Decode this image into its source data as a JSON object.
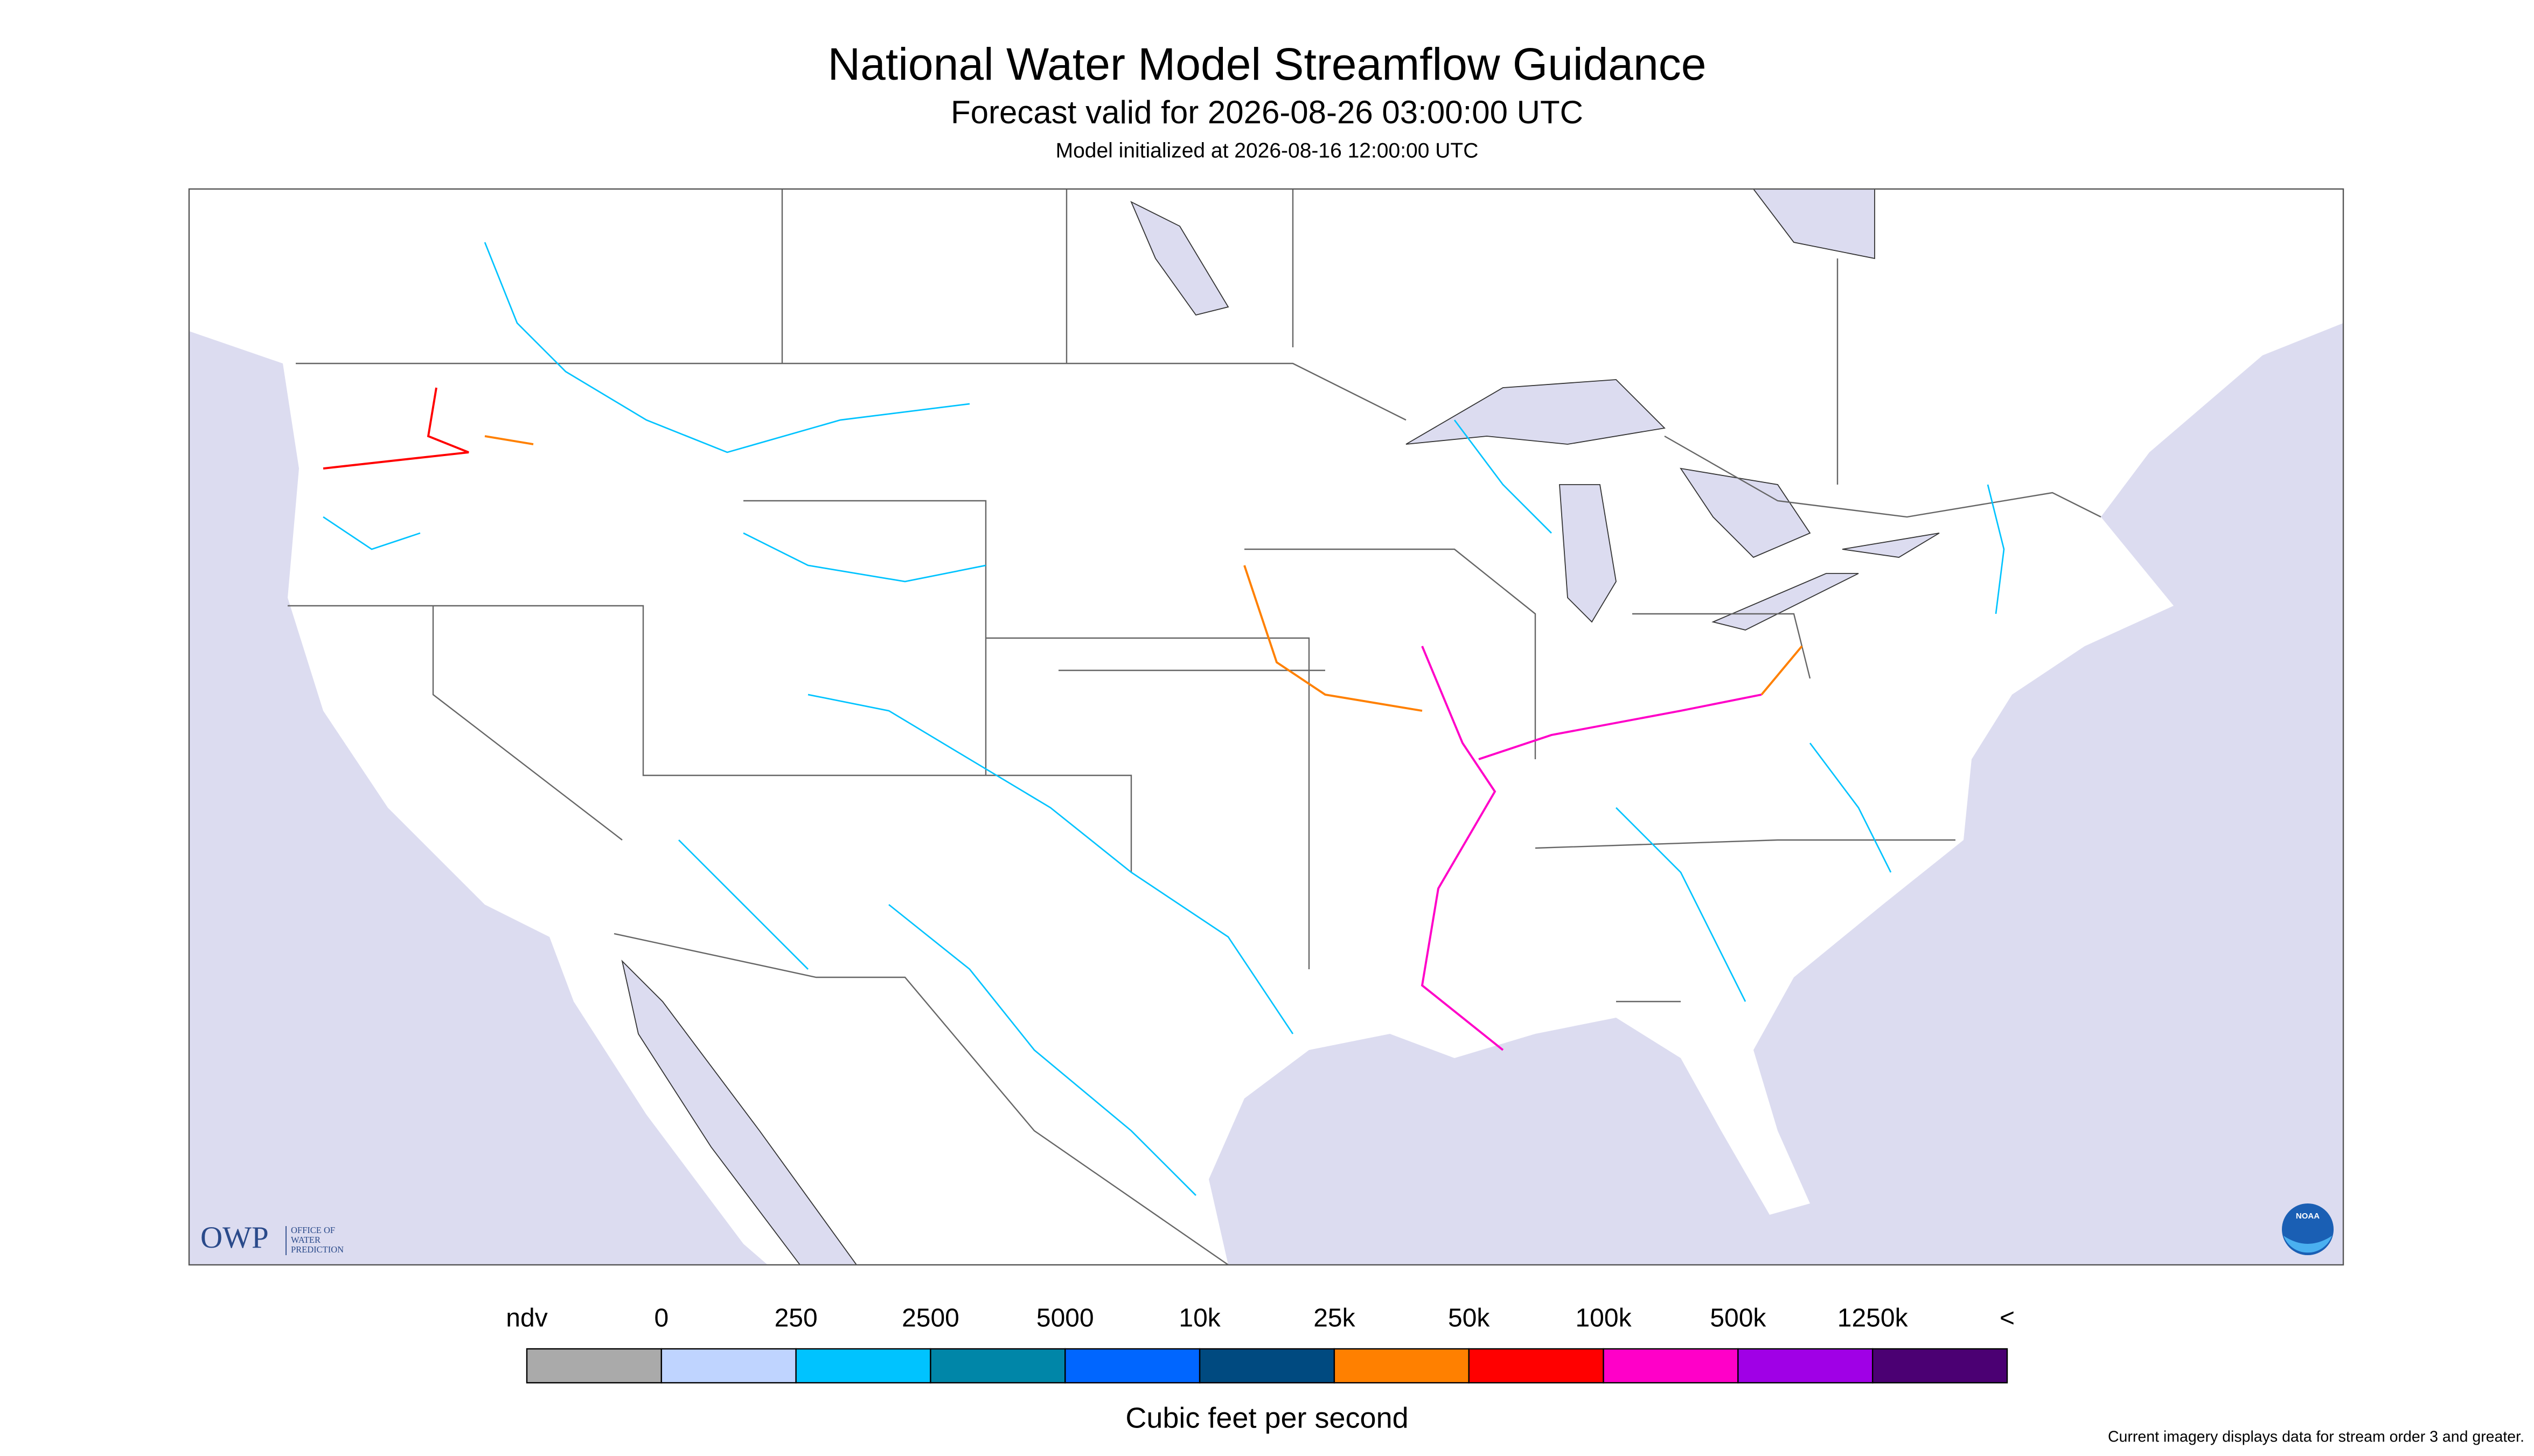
{
  "header": {
    "title": "National Water Model Streamflow Guidance",
    "subtitle": "Forecast valid for 2026-08-26 03:00:00 UTC",
    "init": "Model initialized at 2026-08-16 12:00:00 UTC"
  },
  "map": {
    "logo": {
      "abbr": "OWP",
      "name": [
        "OFFICE OF",
        "WATER",
        "PREDICTION"
      ]
    },
    "badge": "NOAA"
  },
  "legend": {
    "labels": [
      "ndv",
      "0",
      "250",
      "2500",
      "5000",
      "10k",
      "25k",
      "50k",
      "100k",
      "500k",
      "1250k",
      "<"
    ],
    "colors": [
      "#aaaaaa",
      "#bfd4ff",
      "#00c3ff",
      "#0086a8",
      "#0066ff",
      "#004a80",
      "#ff8000",
      "#ff0000",
      "#ff00c8",
      "#a000e6",
      "#4b0073"
    ],
    "unit": "Cubic feet per second"
  },
  "footnote": "Current imagery displays data for stream order 3 and greater."
}
